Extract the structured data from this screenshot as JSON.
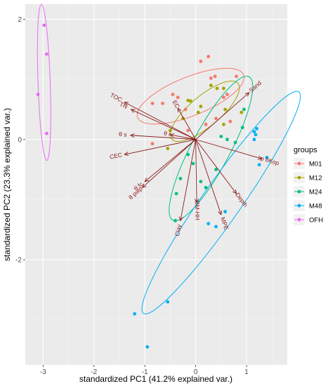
{
  "chart_data": {
    "type": "scatter",
    "xlabel": "standardized PC1 (41.2% explained var.)",
    "ylabel": "standardized PC2 (23.3% explained var.)",
    "xlim": [
      -3.35,
      1.8
    ],
    "ylim": [
      -3.75,
      2.25
    ],
    "x_ticks": [
      -3,
      -2,
      -1,
      0,
      1
    ],
    "y_ticks": [
      -2,
      0,
      2
    ],
    "grid": true,
    "legend_title": "groups",
    "legend_position": "right",
    "series": [
      {
        "name": "M01",
        "color": "#F8766D",
        "points": [
          [
            0.25,
            1.38
          ],
          [
            0.1,
            1.3
          ],
          [
            0.38,
            1.05
          ],
          [
            0.3,
            1.02
          ],
          [
            0.8,
            1.05
          ],
          [
            -0.85,
            0.6
          ],
          [
            -0.65,
            0.6
          ],
          [
            -0.45,
            0.75
          ],
          [
            -0.35,
            0.7
          ],
          [
            0.55,
            0.7
          ],
          [
            0.62,
            0.75
          ],
          [
            -0.2,
            0.5
          ],
          [
            0.4,
            0.35
          ],
          [
            -0.15,
            0.15
          ],
          [
            0.2,
            0.25
          ],
          [
            -0.85,
            -0.07
          ],
          [
            0.68,
            0.3
          ]
        ],
        "ellipse": {
          "cx": -0.1,
          "cy": 0.72,
          "rx": 0.95,
          "ry": 0.38,
          "angle_deg": 22
        }
      },
      {
        "name": "M12",
        "color": "#A3A500",
        "points": [
          [
            -0.15,
            0.65
          ],
          [
            -0.1,
            0.64
          ],
          [
            0.1,
            0.55
          ],
          [
            0.3,
            0.9
          ],
          [
            0.42,
            0.85
          ],
          [
            0.55,
            0.85
          ],
          [
            0.58,
            0.5
          ],
          [
            0.9,
            0.45
          ],
          [
            0.55,
            0.25
          ],
          [
            -0.55,
            -0.15
          ],
          [
            -0.5,
            0.15
          ],
          [
            0.05,
            0.45
          ],
          [
            -0.25,
            0.35
          ]
        ],
        "ellipse": {
          "cx": 0.18,
          "cy": 0.47,
          "rx": 0.72,
          "ry": 0.3,
          "angle_deg": 40
        }
      },
      {
        "name": "M24",
        "color": "#00BF7D",
        "points": [
          [
            0.95,
            0.5
          ],
          [
            0.92,
            0.2
          ],
          [
            -0.38,
            -0.9
          ],
          [
            -0.05,
            -0.4
          ],
          [
            0.1,
            -0.7
          ],
          [
            0.2,
            -0.8
          ],
          [
            0.62,
            0.0
          ],
          [
            0.5,
            0.05
          ],
          [
            0.78,
            -0.05
          ],
          [
            -0.4,
            -1.35
          ],
          [
            -0.15,
            -0.25
          ],
          [
            -0.3,
            -0.65
          ],
          [
            0.4,
            -0.5
          ]
        ],
        "ellipse": {
          "cx": 0.3,
          "cy": -0.15,
          "rx": 1.35,
          "ry": 0.38,
          "angle_deg": 62
        }
      },
      {
        "name": "M48",
        "color": "#00B0F6",
        "points": [
          [
            1.15,
            0.0
          ],
          [
            1.18,
            0.08
          ],
          [
            1.2,
            0.18
          ],
          [
            1.15,
            0.13
          ],
          [
            1.4,
            -0.3
          ],
          [
            1.25,
            -0.42
          ],
          [
            0.25,
            -1.4
          ],
          [
            0.4,
            -1.45
          ],
          [
            0.58,
            -1.2
          ],
          [
            -0.55,
            -2.7
          ],
          [
            -1.2,
            -2.9
          ],
          [
            -0.95,
            -3.45
          ]
        ],
        "ellipse": {
          "cx": 0.5,
          "cy": -1.05,
          "rx": 2.25,
          "ry": 0.38,
          "angle_deg": 55
        }
      },
      {
        "name": "OFH",
        "color": "#E76BF3",
        "points": [
          [
            -2.98,
            1.9
          ],
          [
            -2.93,
            1.42
          ],
          [
            -3.1,
            0.75
          ],
          [
            -2.93,
            0.1
          ]
        ],
        "ellipse": {
          "cx": -2.98,
          "cy": 0.95,
          "rx": 1.3,
          "ry": 0.12,
          "angle_deg": 92
        }
      }
    ],
    "loadings_color": "#8B1A1A",
    "loadings": [
      {
        "label": "TOC",
        "x": -1.4,
        "y": 0.62
      },
      {
        "label": "TN",
        "x": -1.27,
        "y": 0.5
      },
      {
        "label": "EC",
        "x": -0.35,
        "y": 0.52
      },
      {
        "label": "Sand",
        "x": 1.05,
        "y": 0.78
      },
      {
        "label": "θ s",
        "x": -1.28,
        "y": 0.07
      },
      {
        "label": "θ r",
        "x": -0.5,
        "y": 0.08
      },
      {
        "label": "CEC",
        "x": -1.4,
        "y": -0.25
      },
      {
        "label": "p bKop",
        "x": 1.3,
        "y": -0.32
      },
      {
        "label": "θ fc",
        "x": -1.0,
        "y": -0.7
      },
      {
        "label": "θ pwp",
        "x": -1.05,
        "y": -0.8
      },
      {
        "label": "Clay",
        "x": -0.3,
        "y": -1.35
      },
      {
        "label": "OM-HH",
        "x": 0.02,
        "y": -1.05
      },
      {
        "label": "MPE",
        "x": 0.5,
        "y": -1.25
      },
      {
        "label": "Depth",
        "x": 0.8,
        "y": -0.9
      }
    ]
  }
}
